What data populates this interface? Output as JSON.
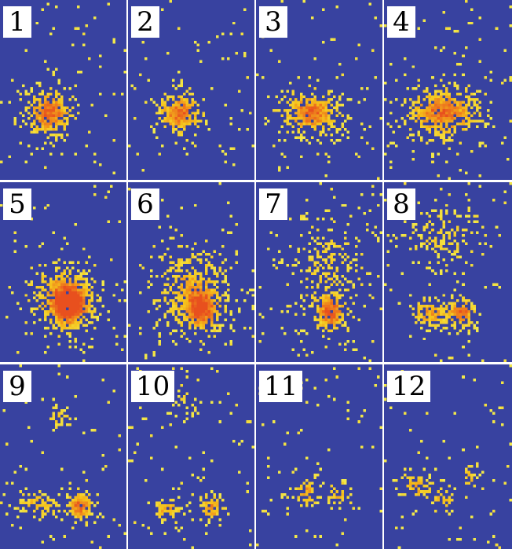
{
  "figure": {
    "background_color": "#3842a0",
    "hot_color": "#e8501e",
    "mid_color": "#f5c21b",
    "cool_color": "#f2e84a",
    "panels": [
      {
        "label": "1"
      },
      {
        "label": "2"
      },
      {
        "label": "3"
      },
      {
        "label": "4"
      },
      {
        "label": "5"
      },
      {
        "label": "6"
      },
      {
        "label": "7"
      },
      {
        "label": "8"
      },
      {
        "label": "9"
      },
      {
        "label": "10"
      },
      {
        "label": "11"
      },
      {
        "label": "12"
      }
    ]
  }
}
